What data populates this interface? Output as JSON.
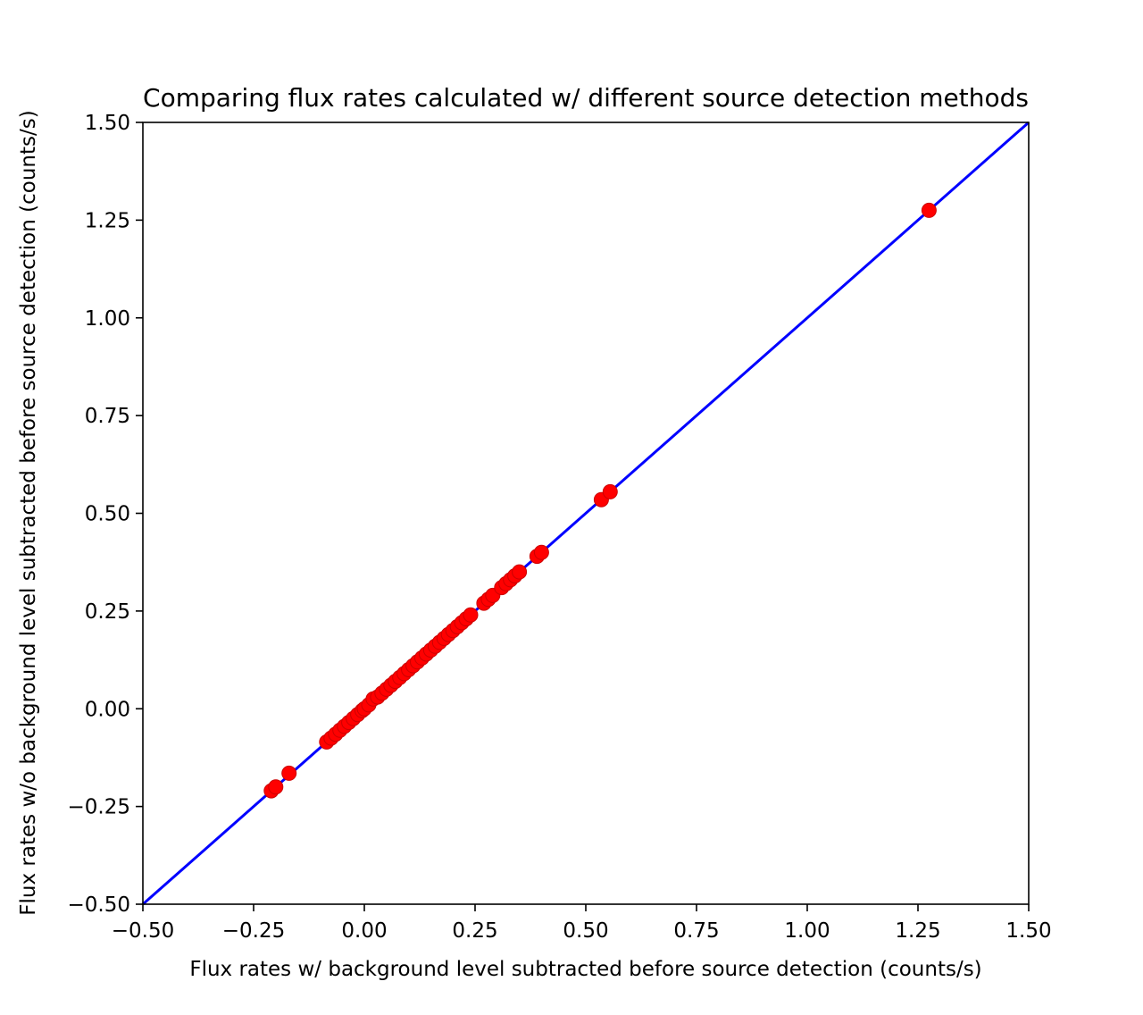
{
  "chart_data": {
    "type": "scatter",
    "title": "Comparing flux rates calculated w/ different source detection methods",
    "xlabel": "Flux rates w/ background level subtracted before source detection (counts/s)",
    "ylabel": "Flux rates w/o background level subtracted before source detection (counts/s)",
    "xlim": [
      -0.5,
      1.5
    ],
    "ylim": [
      -0.5,
      1.5
    ],
    "xticks": [
      "−0.50",
      "−0.25",
      "0.00",
      "0.25",
      "0.50",
      "0.75",
      "1.00",
      "1.25",
      "1.50"
    ],
    "yticks": [
      "−0.50",
      "−0.25",
      "0.00",
      "0.25",
      "0.50",
      "0.75",
      "1.00",
      "1.25",
      "1.50"
    ],
    "tick_values": [
      -0.5,
      -0.25,
      0,
      0.25,
      0.5,
      0.75,
      1.0,
      1.25,
      1.5
    ],
    "grid": false,
    "marker_color": "#ff0000",
    "marker_edge_color": "#cc0000",
    "line_color": "#0000ff",
    "reference_line": {
      "x": [
        -0.5,
        1.5
      ],
      "y": [
        -0.5,
        1.5
      ]
    },
    "points": [
      [
        -0.21,
        -0.21
      ],
      [
        -0.2,
        -0.2
      ],
      [
        -0.17,
        -0.165
      ],
      [
        -0.085,
        -0.085
      ],
      [
        -0.075,
        -0.075
      ],
      [
        -0.065,
        -0.065
      ],
      [
        -0.055,
        -0.055
      ],
      [
        -0.045,
        -0.045
      ],
      [
        -0.035,
        -0.035
      ],
      [
        -0.025,
        -0.025
      ],
      [
        -0.015,
        -0.015
      ],
      [
        -0.005,
        -0.005
      ],
      [
        0.0,
        0.0
      ],
      [
        0.01,
        0.01
      ],
      [
        0.02,
        0.025
      ],
      [
        0.03,
        0.03
      ],
      [
        0.04,
        0.04
      ],
      [
        0.05,
        0.05
      ],
      [
        0.06,
        0.06
      ],
      [
        0.07,
        0.07
      ],
      [
        0.08,
        0.08
      ],
      [
        0.09,
        0.09
      ],
      [
        0.1,
        0.1
      ],
      [
        0.11,
        0.11
      ],
      [
        0.12,
        0.12
      ],
      [
        0.13,
        0.13
      ],
      [
        0.14,
        0.14
      ],
      [
        0.15,
        0.15
      ],
      [
        0.16,
        0.16
      ],
      [
        0.17,
        0.17
      ],
      [
        0.18,
        0.18
      ],
      [
        0.19,
        0.19
      ],
      [
        0.2,
        0.2
      ],
      [
        0.21,
        0.21
      ],
      [
        0.22,
        0.22
      ],
      [
        0.23,
        0.23
      ],
      [
        0.24,
        0.24
      ],
      [
        0.27,
        0.27
      ],
      [
        0.28,
        0.28
      ],
      [
        0.29,
        0.29
      ],
      [
        0.31,
        0.31
      ],
      [
        0.32,
        0.32
      ],
      [
        0.33,
        0.33
      ],
      [
        0.34,
        0.34
      ],
      [
        0.35,
        0.35
      ],
      [
        0.39,
        0.39
      ],
      [
        0.4,
        0.4
      ],
      [
        0.535,
        0.535
      ],
      [
        0.555,
        0.555
      ],
      [
        1.275,
        1.275
      ]
    ]
  }
}
